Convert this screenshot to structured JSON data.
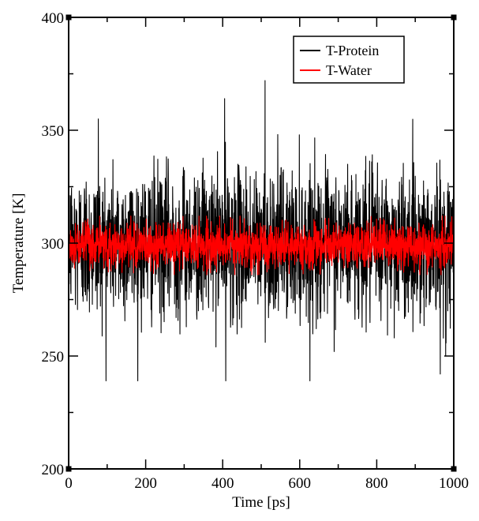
{
  "chart_data": {
    "type": "line",
    "title": "",
    "xlabel": "Time [ps]",
    "ylabel": "Temperature [K]",
    "xlim": [
      0,
      1000
    ],
    "ylim": [
      200,
      400
    ],
    "x_ticks": [
      0,
      200,
      400,
      600,
      800,
      1000
    ],
    "y_ticks": [
      200,
      250,
      300,
      350,
      400
    ],
    "grid": false,
    "legend_position": "top-right",
    "series": [
      {
        "name": "T-Protein",
        "color": "#000000",
        "mean": 300,
        "approx_range": [
          239,
          372
        ],
        "notable_points": [
          {
            "x": 77,
            "y": 355
          },
          {
            "x": 405,
            "y": 364
          },
          {
            "x": 408,
            "y": 239
          },
          {
            "x": 510,
            "y": 372
          },
          {
            "x": 965,
            "y": 242
          }
        ]
      },
      {
        "name": "T-Water",
        "color": "#ff0000",
        "mean": 299,
        "approx_range": [
          286,
          312
        ]
      }
    ]
  }
}
